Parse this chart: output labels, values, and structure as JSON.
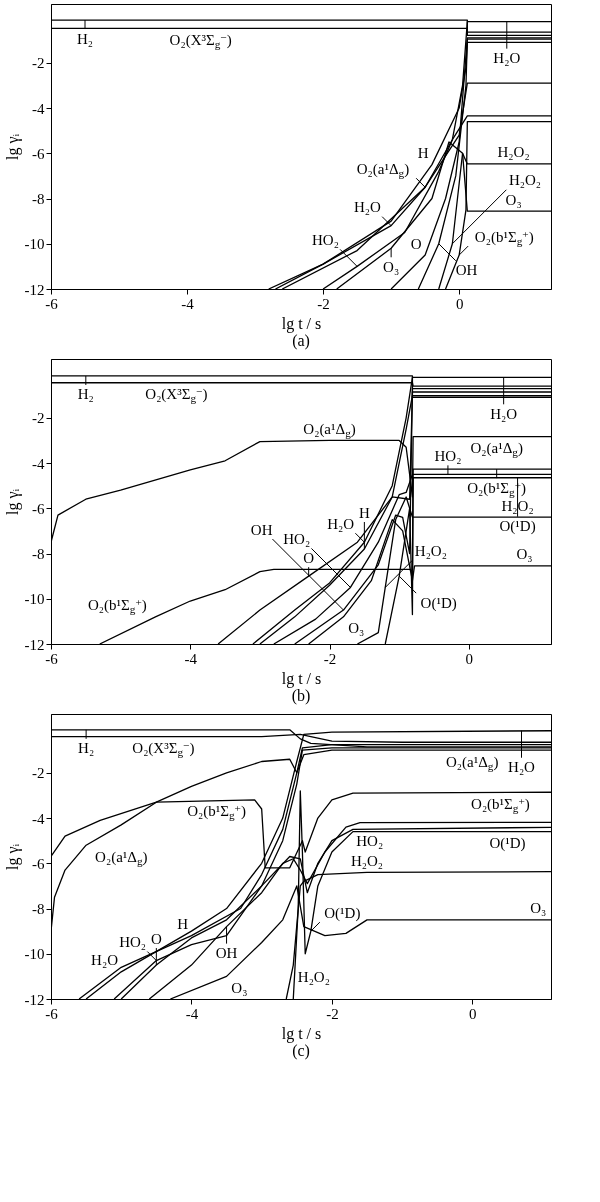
{
  "chart_data": [
    {
      "type": "line",
      "xlabel": "lg t / s",
      "ylabel": "lg γᵢ",
      "xlim": [
        -6,
        1.35
      ],
      "ylim": [
        -12,
        0.6
      ],
      "xticks": [
        -6,
        -4,
        -2,
        0
      ],
      "yticks": [
        -12,
        -10,
        -8,
        -6,
        -4,
        -2
      ],
      "grid": false,
      "legend": false,
      "series": [
        {
          "color": "#000000",
          "x": [
            -6,
            0.12,
            0.12,
            1.35
          ],
          "values": [
            -0.11,
            -0.11,
            -0.79,
            -0.79
          ]
        },
        {
          "color": "#000000",
          "x": [
            -6,
            0.12,
            0.12,
            1.35
          ],
          "values": [
            -0.48,
            -0.48,
            -0.64,
            -0.64
          ]
        },
        {
          "color": "#000000",
          "x": [
            -2.8,
            -2,
            -1,
            -0.5,
            -0.1,
            0.05,
            0.12,
            1.35
          ],
          "values": [
            -12,
            -10.9,
            -9.2,
            -7.5,
            -5.4,
            -3,
            -0.18,
            -0.18
          ]
        },
        {
          "color": "#000000",
          "x": [
            -2.7,
            -2,
            -1,
            -0.4,
            0,
            0.1,
            0.12,
            1.35
          ],
          "values": [
            -12,
            -10.9,
            -9,
            -6.5,
            -4,
            -2.2,
            -1.1,
            -1.1
          ]
        },
        {
          "color": "#000000",
          "x": [
            -2.6,
            -1.5,
            -0.5,
            0,
            0.12,
            1.35
          ],
          "values": [
            -12,
            -10.3,
            -7.5,
            -5.2,
            -2.9,
            -2.9
          ]
        },
        {
          "color": "#000000",
          "x": [
            -2,
            -1.5,
            -0.8,
            -0.3,
            -0.1,
            0.12,
            1.35
          ],
          "values": [
            -12,
            -11,
            -9.5,
            -6.8,
            -5.4,
            -4.35,
            -4.35
          ]
        },
        {
          "color": "#000000",
          "x": [
            -1.8,
            -1,
            -0.4,
            -0.15,
            0.05,
            0.12,
            1.35
          ],
          "values": [
            -12,
            -10.2,
            -8,
            -5.5,
            -6,
            -8.56,
            -8.56
          ]
        },
        {
          "color": "#000000",
          "x": [
            -1,
            -0.5,
            -0.2,
            0,
            0.12,
            1.35
          ],
          "values": [
            -12,
            -10.5,
            -8,
            -5.5,
            -0.9,
            -0.9
          ]
        },
        {
          "color": "#000000",
          "x": [
            -0.6,
            -0.3,
            -0.05,
            0.1,
            0.12,
            1.35
          ],
          "values": [
            -12,
            -10,
            -7,
            -3,
            -0.95,
            -0.95
          ]
        },
        {
          "color": "#000000",
          "x": [
            -0.3,
            -0.1,
            0.05,
            0.12,
            1.35
          ],
          "values": [
            -12,
            -10,
            -6,
            -6.47,
            -6.47
          ]
        },
        {
          "color": "#000000",
          "x": [
            -0.2,
            0,
            0.1,
            0.12,
            1.35
          ],
          "values": [
            -12,
            -10.5,
            -8.5,
            -4.6,
            -4.6
          ]
        }
      ],
      "annotations": [
        {
          "text": "H₂",
          "x": -5.5,
          "y": -0.11
        },
        {
          "text": "O₂(X³Σ$_{g}$$^{−}$)",
          "x": -3.8,
          "y": -0.48
        },
        {
          "text": "H₂O",
          "x": 0.7,
          "y": -0.18
        },
        {
          "text": "H",
          "x": -0.4,
          "y": -6.5
        },
        {
          "text": "H₂O₂",
          "x": 0.8,
          "y": -6.47
        },
        {
          "text": "O₃",
          "x": 0.8,
          "y": -8.56
        },
        {
          "text": "O₂(a¹Δ$_{g}$)",
          "x": -0.5,
          "y": -7.5
        },
        {
          "text": "H₂O",
          "x": -1,
          "y": -9.2
        },
        {
          "text": "O₃",
          "x": -1,
          "y": -10.2
        },
        {
          "text": "HO₂",
          "x": -1.5,
          "y": -11
        },
        {
          "text": "O",
          "x": -0.5,
          "y": -10.5
        },
        {
          "text": "OH",
          "x": -0.3,
          "y": -10
        },
        {
          "text": "O₂(b¹Σ$_{g}$$^{+}$)",
          "x": 0,
          "y": -10.5
        },
        {
          "text": "H₂O₂",
          "x": -0.1,
          "y": -10
        },
        "(a)"
      ]
    },
    {
      "type": "line",
      "xlabel": "lg t / s",
      "ylabel": "lg γᵢ",
      "xlim": [
        -6,
        1.18
      ],
      "ylim": [
        -12,
        0.6
      ],
      "xticks": [
        -6,
        -4,
        -2,
        0
      ],
      "yticks": [
        -12,
        -10,
        -8,
        -6,
        -4,
        -2
      ],
      "grid": false,
      "legend": false,
      "series": [
        {
          "color": "#000000",
          "x": [
            -6,
            -0.81,
            -0.81,
            1.18
          ],
          "values": [
            -0.15,
            -0.15,
            -1.09,
            -1.09
          ]
        },
        {
          "color": "#000000",
          "x": [
            -6,
            -0.81,
            -0.8,
            1.18
          ],
          "values": [
            -0.45,
            -0.45,
            -0.6,
            -0.6
          ]
        },
        {
          "color": "#000000",
          "x": [
            -6,
            -5.9,
            -5.5,
            -5,
            -4,
            -3.5,
            -3,
            -2,
            -1,
            -0.9,
            -0.85,
            -0.81,
            -0.8,
            1.18
          ],
          "values": [
            -7.5,
            -6.3,
            -5.6,
            -5.2,
            -4.3,
            -3.9,
            -3.05,
            -3,
            -3,
            -3.3,
            -4.5,
            -5.5,
            -2.83,
            -2.83
          ]
        },
        {
          "color": "#000000",
          "x": [
            -5.3,
            -4.5,
            -4,
            -3.5,
            -3,
            -2.8,
            -0.85,
            -0.81,
            -0.8,
            1.18
          ],
          "values": [
            -12,
            -10.8,
            -10.1,
            -9.6,
            -8.8,
            -8.7,
            -8.7,
            -8.8,
            -4.27,
            -4.27
          ]
        },
        {
          "color": "#000000",
          "x": [
            -3.1,
            -2.5,
            -2,
            -1.5,
            -1.1,
            -0.9,
            -0.81,
            1.18
          ],
          "values": [
            -12,
            -10.5,
            -9.3,
            -7.5,
            -5,
            -2,
            -0.21,
            -0.21
          ]
        },
        {
          "color": "#000000",
          "x": [
            -3,
            -2.5,
            -2,
            -1.5,
            -1.1,
            -0.9,
            -0.81,
            1.18
          ],
          "values": [
            -12,
            -10.8,
            -9.4,
            -7.8,
            -5.5,
            -2.5,
            -1.02,
            -1.02
          ]
        },
        {
          "color": "#000000",
          "x": [
            -2.8,
            -2.2,
            -1.7,
            -1.3,
            -1,
            -0.9,
            -0.81,
            1.18
          ],
          "values": [
            -12,
            -10.9,
            -9.5,
            -7.5,
            -5.4,
            -5.3,
            -4.5,
            -4.5
          ]
        },
        {
          "color": "#000000",
          "x": [
            -3.6,
            -3,
            -2.3,
            -1.6,
            -1.1,
            -0.85,
            -0.81,
            1.18
          ],
          "values": [
            -12,
            -10.5,
            -9,
            -7.5,
            -5.5,
            -5.6,
            -0.86,
            -0.86
          ]
        },
        {
          "color": "#000000",
          "x": [
            -2.3,
            -1.8,
            -1.4,
            -1.1,
            -0.95,
            -0.81,
            -0.78,
            1.18
          ],
          "values": [
            -12,
            -10.8,
            -9.2,
            -6.5,
            -7,
            -9.2,
            -8.55,
            -8.55
          ]
        },
        {
          "color": "#000000",
          "x": [
            -2.5,
            -1.8,
            -1.3,
            -1.05,
            -0.95,
            -0.85,
            -0.81,
            1.18
          ],
          "values": [
            -12,
            -10.5,
            -8.5,
            -6.3,
            -6.4,
            -8,
            -0.71,
            -0.71
          ]
        },
        {
          "color": "#000000",
          "x": [
            -1.6,
            -1.3,
            -1.2,
            -1.05,
            -0.9,
            -0.81,
            1.18
          ],
          "values": [
            -12,
            -11.5,
            -9.5,
            -6.5,
            -5.5,
            -6.39,
            -6.39
          ]
        },
        {
          "color": "#000000",
          "x": [
            -1.2,
            -1,
            -0.85,
            -0.81,
            -0.8,
            1.18
          ],
          "values": [
            -12,
            -9,
            -6,
            -10.7,
            -4.65,
            -4.65
          ]
        }
      ],
      "annotations": [
        {
          "text": "H₂",
          "x": -5.5,
          "y": -0.15
        },
        {
          "text": "O₂(X³Σ$_{g}$$^{−}$)",
          "x": -4.2,
          "y": -0.45
        },
        {
          "text": "O₂(a¹Δ$_{g}$)",
          "x": -2,
          "y": -3
        },
        {
          "text": "H₂O",
          "x": 0.5,
          "y": -0.21
        },
        {
          "text": "O₂(a¹Δ$_{g}$)",
          "x": 0.4,
          "y": -2.83
        },
        {
          "text": "O₂(b¹Σ$_{g}$$^{+}$)",
          "x": 0.4,
          "y": -4.27
        },
        {
          "text": "HO₂",
          "x": -0.3,
          "y": -4.5
        },
        {
          "text": "O(¹D)",
          "x": 0.7,
          "y": -4.65
        },
        {
          "text": "H₂O₂",
          "x": 0.7,
          "y": -6.39
        },
        {
          "text": "O₃",
          "x": 0.8,
          "y": -8.55
        },
        {
          "text": "H₂O",
          "x": -1.5,
          "y": -7.5
        },
        {
          "text": "H",
          "x": -1.5,
          "y": -7.8
        },
        {
          "text": "O",
          "x": -2.3,
          "y": -9
        },
        {
          "text": "HO₂",
          "x": -1.7,
          "y": -9.5
        },
        {
          "text": "O₂(b¹Σ$_{g}$$^{+}$)",
          "x": -4.5,
          "y": -10.8
        },
        {
          "text": "O₃",
          "x": -1.8,
          "y": -10.8
        },
        {
          "text": "H₂O₂",
          "x": -1.2,
          "y": -9.5
        },
        {
          "text": "OH",
          "x": -1.8,
          "y": -10.5
        },
        {
          "text": "O(¹D)",
          "x": -1,
          "y": -9
        },
        "(b)"
      ]
    },
    {
      "type": "line",
      "xlabel": "lg t / s",
      "ylabel": "lg γᵢ",
      "xlim": [
        -6,
        1.12
      ],
      "ylim": [
        -12,
        0.6
      ],
      "xticks": [
        -6,
        -4,
        -2,
        0
      ],
      "yticks": [
        -12,
        -10,
        -8,
        -6,
        -4,
        -2
      ],
      "grid": false,
      "legend": false,
      "series": [
        {
          "color": "#000000",
          "x": [
            -6,
            -2.6,
            -2.45,
            -2.3,
            -1.5,
            1.12
          ],
          "values": [
            -0.1,
            -0.1,
            -0.5,
            -0.7,
            -0.85,
            -0.85
          ]
        },
        {
          "color": "#000000",
          "x": [
            -6,
            -3,
            -2.45,
            -2,
            -1,
            1.12
          ],
          "values": [
            -0.4,
            -0.4,
            -0.3,
            -0.6,
            -0.65,
            -0.65
          ]
        },
        {
          "color": "#000000",
          "x": [
            -5.5,
            -5,
            -4,
            -3.5,
            -3,
            -2.7,
            -2.5,
            -2.4,
            -2,
            1.12
          ],
          "values": [
            -12,
            -10.8,
            -9,
            -8,
            -6,
            -4,
            -1.5,
            -0.3,
            -0.2,
            -0.14
          ]
        },
        {
          "color": "#000000",
          "x": [
            -6,
            -5.95,
            -5.8,
            -5.5,
            -5,
            -4.5,
            -4,
            -3.5,
            -3,
            -2.6,
            -2.5,
            -2.4,
            -2,
            1.12
          ],
          "values": [
            -9,
            -7.5,
            -6.3,
            -5.2,
            -4.3,
            -3.3,
            -2.6,
            -2,
            -1.5,
            -1.4,
            -2,
            -1.2,
            -1,
            -1
          ]
        },
        {
          "color": "#000000",
          "x": [
            -6,
            -5.8,
            -5.3,
            -4.5,
            -3.1,
            -3,
            -2.95,
            -2.6,
            -2.42,
            -2.38,
            -2.2,
            -2,
            -1.7,
            1.12
          ],
          "values": [
            -5.7,
            -4.8,
            -4.1,
            -3.3,
            -3.2,
            -3.6,
            -6.2,
            -6.2,
            -5,
            -5.5,
            -4,
            -3.2,
            -2.9,
            -2.86
          ]
        },
        {
          "color": "#000000",
          "x": [
            -2.65,
            -2.55,
            -2.45,
            -2.4,
            -2.2,
            -1.5,
            1.12
          ],
          "values": [
            -12,
            -10.5,
            -7,
            -6.8,
            -6.5,
            -6.4,
            -6.37
          ]
        },
        {
          "color": "#000000",
          "x": [
            -4.3,
            -3.5,
            -3,
            -2.7,
            -2.5,
            -2.4,
            -2.1,
            -1.8,
            -1.5,
            1.12
          ],
          "values": [
            -12,
            -11,
            -9.5,
            -8.5,
            -7,
            -8.8,
            -9.2,
            -9.1,
            -8.5,
            -8.5
          ]
        },
        {
          "color": "#000000",
          "x": [
            -5,
            -4.5,
            -4,
            -3.5,
            -3,
            -2.7,
            -2.5,
            -2.42,
            -2,
            1.12
          ],
          "values": [
            -12,
            -10.5,
            -9.3,
            -8.5,
            -7,
            -5,
            -2.5,
            -1,
            -0.9,
            -0.9
          ]
        },
        {
          "color": "#000000",
          "x": [
            -4.6,
            -4,
            -3.5,
            -3,
            -2.7,
            -2.55,
            -2.45,
            -2.35,
            -2.1,
            -1.8,
            -1.6,
            1.12
          ],
          "values": [
            -12,
            -10.5,
            -8.8,
            -7.3,
            -6,
            -5.8,
            -6.3,
            -6.9,
            -5.5,
            -4.4,
            -4.2,
            -4.19
          ]
        },
        {
          "color": "#000000",
          "x": [
            -2.55,
            -2.48,
            -2.45,
            -2.42,
            -2.38,
            -2.3,
            -2.2,
            -2,
            -1.7,
            1.12
          ],
          "values": [
            -12,
            -8,
            -2.8,
            -5.5,
            -10,
            -9,
            -7,
            -5.5,
            -4.6,
            -4.6
          ]
        },
        {
          "color": "#000000",
          "x": [
            -5.6,
            -5,
            -4,
            -3.3,
            -3,
            -2.7,
            -2.5,
            -2.42,
            -2,
            1.12
          ],
          "values": [
            -12,
            -10.6,
            -9.2,
            -8,
            -6.5,
            -4.5,
            -2,
            -0.9,
            -0.75,
            -0.75
          ]
        },
        {
          "color": "#000000",
          "x": [
            -5.1,
            -4.5,
            -4,
            -3.5,
            -3,
            -2.6,
            -2.45,
            -2.35,
            -2.2,
            -2,
            -1.7,
            1.12
          ],
          "values": [
            -12,
            -10.3,
            -9.6,
            -9.2,
            -7,
            -5.7,
            -5.8,
            -7.3,
            -6,
            -5,
            -4.5,
            -4.41
          ]
        }
      ],
      "annotations": [
        {
          "text": "H₂",
          "x": -5.5,
          "y": -0.1
        },
        {
          "text": "O₂(X³Σ$_{g}$$^{−}$)",
          "x": -4.4,
          "y": -0.4
        },
        {
          "text": "H₂O",
          "x": 0.7,
          "y": -0.14
        },
        {
          "text": "O₂(a¹Δ$_{g}$)",
          "x": 0.5,
          "y": -1
        },
        {
          "text": "O₂(b¹Σ$_{g}$$^{+}$)",
          "x": -3.1,
          "y": -3.2
        },
        {
          "text": "O₂(b¹Σ$_{g}$$^{+}$)",
          "x": 0.4,
          "y": -2.86
        },
        {
          "text": "HO₂",
          "x": -1.7,
          "y": -4.5
        },
        {
          "text": "O(¹D)",
          "x": 0.5,
          "y": -4.6
        },
        {
          "text": "O₂(a¹Δ$_{g}$)",
          "x": -5.5,
          "y": -5.2
        },
        {
          "text": "H₂O₂",
          "x": -1.5,
          "y": -6.4
        },
        {
          "text": "O₃",
          "x": 1.12,
          "y": -8.5
        },
        {
          "text": "H",
          "x": -4,
          "y": -9.2
        },
        {
          "text": "HO₂",
          "x": -4.5,
          "y": -10.3
        },
        {
          "text": "H₂O",
          "x": -5,
          "y": -10.8
        },
        {
          "text": "OH",
          "x": -3.5,
          "y": -8.8
        },
        {
          "text": "O",
          "x": -4.5,
          "y": -10.5
        },
        {
          "text": "O₃",
          "x": -3.5,
          "y": -11
        },
        {
          "text": "O(¹D)",
          "x": -2.3,
          "y": -9
        },
        {
          "text": "H₂O₂",
          "x": -2.55,
          "y": -10.5
        },
        "(c)"
      ]
    }
  ]
}
